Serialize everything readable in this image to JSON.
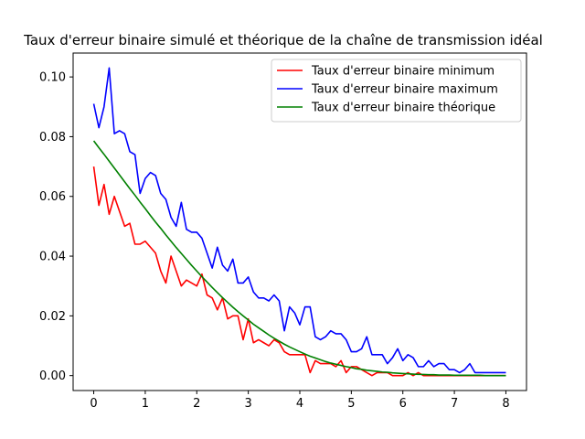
{
  "chart_data": {
    "type": "line",
    "title": "Taux d'erreur binaire simulé et théorique de la chaîne de transmission idéal",
    "xlabel": "",
    "ylabel": "",
    "xlim": [
      -0.4,
      8.4
    ],
    "ylim": [
      -0.005,
      0.108
    ],
    "xticks": [
      0,
      1,
      2,
      3,
      4,
      5,
      6,
      7,
      8
    ],
    "yticks": [
      0.0,
      0.02,
      0.04,
      0.06,
      0.08,
      0.1
    ],
    "ytick_labels": [
      "0.00",
      "0.02",
      "0.04",
      "0.06",
      "0.08",
      "0.10"
    ],
    "grid": false,
    "legend_position": "top-right",
    "series": [
      {
        "name": "Taux d'erreur binaire minimum",
        "color": "#ff0000",
        "x": [
          0,
          0.1,
          0.2,
          0.3,
          0.4,
          0.5,
          0.6,
          0.7,
          0.8,
          0.9,
          1.0,
          1.1,
          1.2,
          1.3,
          1.4,
          1.5,
          1.6,
          1.7,
          1.8,
          1.9,
          2.0,
          2.1,
          2.2,
          2.3,
          2.4,
          2.5,
          2.6,
          2.7,
          2.8,
          2.9,
          3.0,
          3.1,
          3.2,
          3.3,
          3.4,
          3.5,
          3.6,
          3.7,
          3.8,
          3.9,
          4.0,
          4.1,
          4.2,
          4.3,
          4.4,
          4.5,
          4.6,
          4.7,
          4.8,
          4.9,
          5.0,
          5.1,
          5.2,
          5.3,
          5.4,
          5.5,
          5.6,
          5.7,
          5.8,
          5.9,
          6.0,
          6.1,
          6.2,
          6.3,
          6.4,
          6.5,
          6.6,
          6.7,
          6.8,
          6.9,
          7.0,
          7.1,
          7.2,
          7.3,
          7.4,
          7.5,
          7.6,
          7.7,
          7.8,
          7.9,
          8.0
        ],
        "y": [
          0.07,
          0.057,
          0.064,
          0.054,
          0.06,
          0.055,
          0.05,
          0.051,
          0.044,
          0.044,
          0.045,
          0.043,
          0.041,
          0.035,
          0.031,
          0.04,
          0.035,
          0.03,
          0.032,
          0.031,
          0.03,
          0.034,
          0.027,
          0.026,
          0.022,
          0.026,
          0.019,
          0.02,
          0.02,
          0.012,
          0.019,
          0.011,
          0.012,
          0.011,
          0.01,
          0.012,
          0.011,
          0.008,
          0.007,
          0.007,
          0.007,
          0.007,
          0.001,
          0.005,
          0.004,
          0.004,
          0.004,
          0.003,
          0.005,
          0.001,
          0.003,
          0.003,
          0.002,
          0.001,
          0.0,
          0.001,
          0.001,
          0.001,
          0.0,
          0.0,
          0.0,
          0.001,
          0.0,
          0.001,
          0.0,
          0.0,
          0.0,
          0.0,
          0.0,
          0.0,
          0.0,
          0.0,
          0.0,
          0.0,
          0.0,
          0.0,
          0.0,
          0.0,
          0.0,
          0.0,
          0.0
        ]
      },
      {
        "name": "Taux d'erreur binaire maximum",
        "color": "#0000ff",
        "x": [
          0,
          0.1,
          0.2,
          0.3,
          0.4,
          0.5,
          0.6,
          0.7,
          0.8,
          0.9,
          1.0,
          1.1,
          1.2,
          1.3,
          1.4,
          1.5,
          1.6,
          1.7,
          1.8,
          1.9,
          2.0,
          2.1,
          2.2,
          2.3,
          2.4,
          2.5,
          2.6,
          2.7,
          2.8,
          2.9,
          3.0,
          3.1,
          3.2,
          3.3,
          3.4,
          3.5,
          3.6,
          3.7,
          3.8,
          3.9,
          4.0,
          4.1,
          4.2,
          4.3,
          4.4,
          4.5,
          4.6,
          4.7,
          4.8,
          4.9,
          5.0,
          5.1,
          5.2,
          5.3,
          5.4,
          5.5,
          5.6,
          5.7,
          5.8,
          5.9,
          6.0,
          6.1,
          6.2,
          6.3,
          6.4,
          6.5,
          6.6,
          6.7,
          6.8,
          6.9,
          7.0,
          7.1,
          7.2,
          7.3,
          7.4,
          7.5,
          7.6,
          7.7,
          7.8,
          7.9,
          8.0
        ],
        "y": [
          0.091,
          0.083,
          0.09,
          0.103,
          0.081,
          0.082,
          0.081,
          0.075,
          0.074,
          0.061,
          0.066,
          0.068,
          0.067,
          0.061,
          0.059,
          0.053,
          0.05,
          0.058,
          0.049,
          0.048,
          0.048,
          0.046,
          0.041,
          0.036,
          0.043,
          0.037,
          0.035,
          0.039,
          0.031,
          0.031,
          0.033,
          0.028,
          0.026,
          0.026,
          0.025,
          0.027,
          0.025,
          0.015,
          0.023,
          0.021,
          0.017,
          0.023,
          0.023,
          0.013,
          0.012,
          0.013,
          0.015,
          0.014,
          0.014,
          0.012,
          0.008,
          0.008,
          0.009,
          0.013,
          0.007,
          0.007,
          0.007,
          0.004,
          0.006,
          0.009,
          0.005,
          0.007,
          0.006,
          0.003,
          0.003,
          0.005,
          0.003,
          0.004,
          0.004,
          0.002,
          0.002,
          0.001,
          0.002,
          0.004,
          0.001,
          0.001,
          0.001,
          0.001,
          0.001,
          0.001,
          0.001
        ]
      },
      {
        "name": "Taux d'erreur binaire théorique",
        "color": "#008000",
        "x": [
          0,
          0.1,
          0.2,
          0.3,
          0.4,
          0.5,
          0.6,
          0.7,
          0.8,
          0.9,
          1.0,
          1.1,
          1.2,
          1.3,
          1.4,
          1.5,
          1.6,
          1.7,
          1.8,
          1.9,
          2.0,
          2.1,
          2.2,
          2.3,
          2.4,
          2.5,
          2.6,
          2.7,
          2.8,
          2.9,
          3.0,
          3.1,
          3.2,
          3.3,
          3.4,
          3.5,
          3.6,
          3.7,
          3.8,
          3.9,
          4.0,
          4.1,
          4.2,
          4.3,
          4.4,
          4.5,
          4.6,
          4.7,
          4.8,
          4.9,
          5.0,
          5.1,
          5.2,
          5.3,
          5.4,
          5.5,
          5.6,
          5.7,
          5.8,
          5.9,
          6.0,
          6.1,
          6.2,
          6.3,
          6.4,
          6.5,
          6.6,
          6.7,
          6.8,
          6.9,
          7.0,
          7.1,
          7.2,
          7.3,
          7.4,
          7.5,
          7.6,
          7.7,
          7.8,
          7.9,
          8.0
        ],
        "y": [
          0.0786,
          0.0763,
          0.0741,
          0.0718,
          0.0695,
          0.0672,
          0.0649,
          0.0626,
          0.0604,
          0.0581,
          0.0559,
          0.0536,
          0.0514,
          0.0493,
          0.0471,
          0.045,
          0.0429,
          0.0409,
          0.0389,
          0.0369,
          0.035,
          0.0331,
          0.0313,
          0.0295,
          0.0278,
          0.0261,
          0.0245,
          0.0229,
          0.0214,
          0.02,
          0.0186,
          0.0172,
          0.016,
          0.0148,
          0.0136,
          0.0125,
          0.0115,
          0.0105,
          0.0096,
          0.0088,
          0.008,
          0.0072,
          0.0065,
          0.0059,
          0.0053,
          0.0047,
          0.0042,
          0.0038,
          0.0034,
          0.003,
          0.0027,
          0.0023,
          0.0021,
          0.0018,
          0.0016,
          0.0014,
          0.0012,
          0.0011,
          0.0009,
          0.0008,
          0.0007,
          0.0006,
          0.0005,
          0.0004,
          0.0004,
          0.0003,
          0.0003,
          0.0002,
          0.0002,
          0.0002,
          0.0001,
          0.0001,
          0.0001,
          0.0001,
          0.0001,
          0.0001,
          0.0,
          0.0,
          0.0,
          0.0,
          0.0
        ]
      }
    ]
  }
}
